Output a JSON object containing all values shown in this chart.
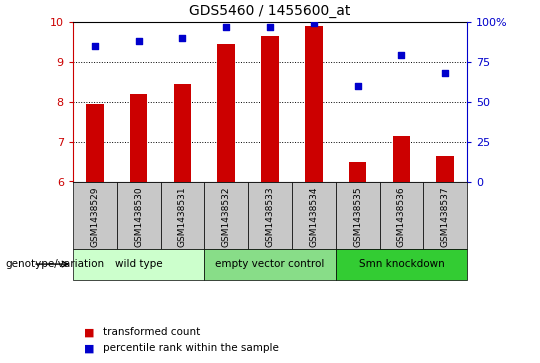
{
  "title": "GDS5460 / 1455600_at",
  "samples": [
    "GSM1438529",
    "GSM1438530",
    "GSM1438531",
    "GSM1438532",
    "GSM1438533",
    "GSM1438534",
    "GSM1438535",
    "GSM1438536",
    "GSM1438537"
  ],
  "transformed_counts": [
    7.95,
    8.2,
    8.45,
    9.45,
    9.65,
    9.9,
    6.5,
    7.15,
    6.65
  ],
  "percentile_ranks": [
    85,
    88,
    90,
    97,
    97,
    99,
    60,
    79,
    68
  ],
  "ylim_left": [
    6,
    10
  ],
  "ylim_right": [
    0,
    100
  ],
  "yticks_left": [
    6,
    7,
    8,
    9,
    10
  ],
  "yticks_right": [
    0,
    25,
    50,
    75,
    100
  ],
  "bar_color": "#cc0000",
  "dot_color": "#0000cc",
  "bar_bottom": 6,
  "groups": [
    {
      "label": "wild type",
      "start": 0,
      "end": 3,
      "color": "#ccffcc"
    },
    {
      "label": "empty vector control",
      "start": 3,
      "end": 6,
      "color": "#88dd88"
    },
    {
      "label": "Smn knockdown",
      "start": 6,
      "end": 9,
      "color": "#33cc33"
    }
  ],
  "genotype_label": "genotype/variation",
  "legend_items": [
    {
      "color": "#cc0000",
      "label": "transformed count"
    },
    {
      "color": "#0000cc",
      "label": "percentile rank within the sample"
    }
  ],
  "grid_yticks": [
    7,
    8,
    9
  ],
  "sample_bg_color": "#c8c8c8",
  "plot_bg_color": "#ffffff",
  "bar_width": 0.4
}
